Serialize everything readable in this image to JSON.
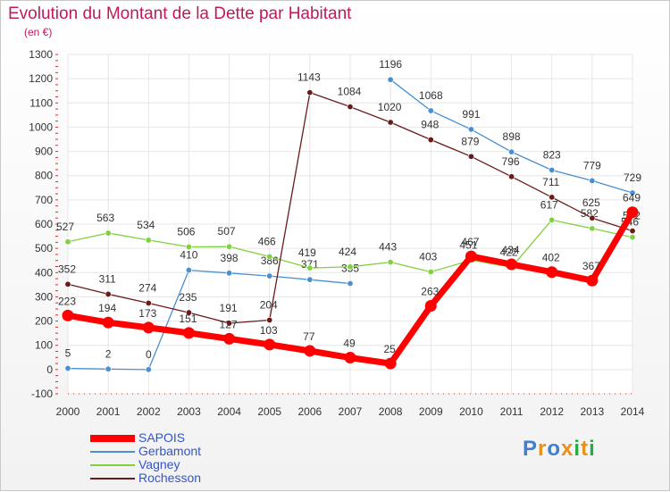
{
  "title": "Evolution du Montant de la Dette par Habitant",
  "subtitle": "(en €)",
  "brand": {
    "text": "Proxiti",
    "colors": [
      "#3f7fd0",
      "#e8901a",
      "#3f7fd0",
      "#e8901a",
      "#2aa84a",
      "#e8901a",
      "#2aa84a"
    ]
  },
  "chart_data": {
    "type": "line",
    "x": [
      "2000",
      "2001",
      "2002",
      "2003",
      "2004",
      "2005",
      "2006",
      "2007",
      "2008",
      "2009",
      "2010",
      "2011",
      "2012",
      "2013",
      "2014"
    ],
    "ylim": [
      -100,
      1300
    ],
    "yticks": [
      -100,
      0,
      100,
      200,
      300,
      400,
      500,
      600,
      700,
      800,
      900,
      1000,
      1100,
      1200,
      1300
    ],
    "grid": true,
    "legend_position": "bottom-left",
    "series": [
      {
        "name": "SAPOIS",
        "color": "#ff0000",
        "values": [
          223,
          194,
          173,
          151,
          127,
          103,
          77,
          49,
          25,
          263,
          467,
          434,
          402,
          367,
          649
        ]
      },
      {
        "name": "Gerbamont",
        "color": "#4a90d0",
        "values": [
          5,
          2,
          0,
          410,
          398,
          386,
          371,
          355,
          1196,
          1068,
          991,
          898,
          823,
          779,
          729
        ]
      },
      {
        "name": "Vagney",
        "color": "#80d040",
        "values": [
          527,
          563,
          534,
          506,
          507,
          466,
          419,
          424,
          443,
          403,
          451,
          422,
          617,
          582,
          546
        ]
      },
      {
        "name": "Rochesson",
        "color": "#6b1a1a",
        "values": [
          352,
          311,
          274,
          235,
          191,
          204,
          1143,
          1084,
          1020,
          948,
          879,
          796,
          711,
          625,
          572
        ]
      }
    ]
  }
}
